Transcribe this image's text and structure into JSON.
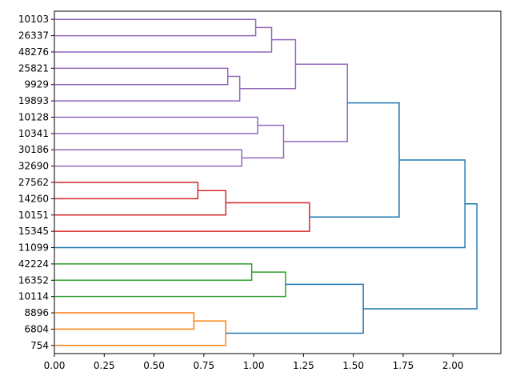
{
  "chart_data": {
    "type": "dendrogram",
    "orientation": "left-to-right",
    "leaves": [
      "10103",
      "26337",
      "48276",
      "25821",
      "9929",
      "19893",
      "10128",
      "10341",
      "30186",
      "32690",
      "27562",
      "14260",
      "10151",
      "15345",
      "11099",
      "42224",
      "16352",
      "10114",
      "8896",
      "6804",
      "754"
    ],
    "xlim": [
      0,
      2.24
    ],
    "x_ticks": [
      0.0,
      0.25,
      0.5,
      0.75,
      1.0,
      1.25,
      1.5,
      1.75,
      2.0
    ],
    "x_tick_labels": [
      "0.00",
      "0.25",
      "0.50",
      "0.75",
      "1.00",
      "1.25",
      "1.50",
      "1.75",
      "2.00"
    ],
    "colors": {
      "purple": "#9467bd",
      "red": "#d62728",
      "green": "#2ca02c",
      "orange": "#ff7f0e",
      "blue": "#1f77b4"
    },
    "merges": [
      {
        "id": "m1",
        "left": "L0",
        "right": "L1",
        "height": 1.01,
        "color": "purple"
      },
      {
        "id": "m2",
        "left": "m1",
        "right": "L2",
        "height": 1.09,
        "color": "purple"
      },
      {
        "id": "m3",
        "left": "L3",
        "right": "L4",
        "height": 0.87,
        "color": "purple"
      },
      {
        "id": "m4",
        "left": "m3",
        "right": "L5",
        "height": 0.93,
        "color": "purple"
      },
      {
        "id": "m5",
        "left": "m2",
        "right": "m4",
        "height": 1.21,
        "color": "purple"
      },
      {
        "id": "m6",
        "left": "L6",
        "right": "L7",
        "height": 1.02,
        "color": "purple"
      },
      {
        "id": "m7",
        "left": "L8",
        "right": "L9",
        "height": 0.94,
        "color": "purple"
      },
      {
        "id": "m8",
        "left": "m6",
        "right": "m7",
        "height": 1.15,
        "color": "purple"
      },
      {
        "id": "m9",
        "left": "m5",
        "right": "m8",
        "height": 1.47,
        "color": "purple"
      },
      {
        "id": "m10",
        "left": "L10",
        "right": "L11",
        "height": 0.72,
        "color": "red"
      },
      {
        "id": "m11",
        "left": "m10",
        "right": "L12",
        "height": 0.86,
        "color": "red"
      },
      {
        "id": "m12",
        "left": "m11",
        "right": "L13",
        "height": 1.28,
        "color": "red"
      },
      {
        "id": "m13",
        "left": "m9",
        "right": "m12",
        "height": 1.73,
        "color": "blue"
      },
      {
        "id": "m14",
        "left": "m13",
        "right": "L14",
        "height": 2.06,
        "color": "blue"
      },
      {
        "id": "m15",
        "left": "L15",
        "right": "L16",
        "height": 0.99,
        "color": "green"
      },
      {
        "id": "m16",
        "left": "m15",
        "right": "L17",
        "height": 1.16,
        "color": "green"
      },
      {
        "id": "m17",
        "left": "L18",
        "right": "L19",
        "height": 0.7,
        "color": "orange"
      },
      {
        "id": "m18",
        "left": "m17",
        "right": "L20",
        "height": 0.86,
        "color": "orange"
      },
      {
        "id": "m19",
        "left": "m16",
        "right": "m18",
        "height": 1.55,
        "color": "blue"
      },
      {
        "id": "m20",
        "left": "m14",
        "right": "m19",
        "height": 2.12,
        "color": "blue"
      }
    ],
    "leaf_links": [
      {
        "leaf": "L14",
        "color": "blue"
      }
    ],
    "title": "",
    "xlabel": "",
    "ylabel": ""
  }
}
